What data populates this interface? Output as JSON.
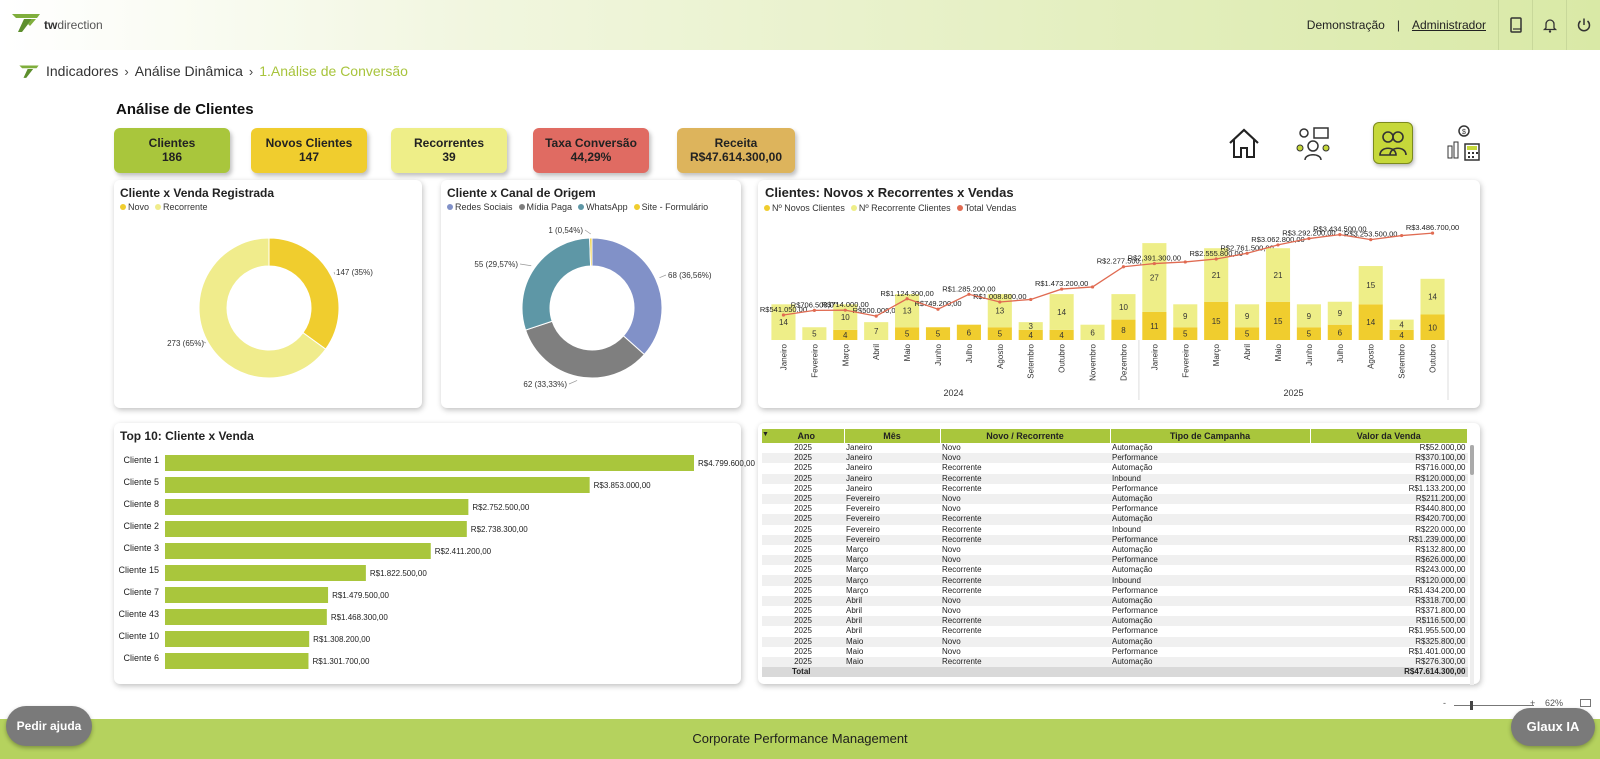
{
  "app": {
    "logo_text_bold": "tw",
    "logo_text": "direction",
    "nav_demo": "Demonstração",
    "nav_sep": "|",
    "nav_admin": "Administrador"
  },
  "breadcrumb": {
    "items": [
      "Indicadores",
      "Análise Dinâmica",
      "1.Análise de Conversão"
    ]
  },
  "page_title": "Análise de Clientes",
  "kpis": [
    {
      "label": "Clientes",
      "value": "186",
      "color": "#a9c63c"
    },
    {
      "label": "Novos Clientes",
      "value": "147",
      "color": "#f0cd2e"
    },
    {
      "label": "Recorrentes",
      "value": "39",
      "color": "#eeee88"
    },
    {
      "label": "Taxa Conversão",
      "value": "44,29%",
      "color": "#e06b62"
    },
    {
      "label": "Receita",
      "value": "R$47.614.300,00",
      "color": "#ddb45c"
    }
  ],
  "nav_icons": [
    "home-icon",
    "people-network-icon",
    "clients-icon",
    "finance-icon"
  ],
  "chart_data": [
    {
      "type": "pie",
      "title": "Cliente x Venda Registrada",
      "legend": [
        "Novo",
        "Recorrente"
      ],
      "colors": [
        "#f0cd2e",
        "#f0ec8c"
      ],
      "values": [
        147,
        273
      ],
      "labels": [
        "147 (35%)",
        "273 (65%)"
      ]
    },
    {
      "type": "pie",
      "title": "Cliente x Canal de Origem",
      "legend": [
        "Redes Sociais",
        "Mídia Paga",
        "WhatsApp",
        "Site - Formulário"
      ],
      "colors": [
        "#8191c8",
        "#7f7f7f",
        "#5e97a6",
        "#f0cd2e"
      ],
      "values": [
        68,
        62,
        55,
        1
      ],
      "labels": [
        "68 (36,56%)",
        "62 (33,33%)",
        "55 (29,57%)",
        "1 (0,54%)"
      ]
    },
    {
      "type": "bar",
      "title": "Clientes: Novos x Recorrentes x Vendas",
      "legend": [
        "Nº Novos Clientes",
        "Nº Recorrente Clientes",
        "Total Vendas"
      ],
      "colors": [
        "#f0cd2e",
        "#eeee88",
        "#e06b52"
      ],
      "categories": [
        "Janeiro",
        "Fevereiro",
        "Março",
        "Abril",
        "Maio",
        "Junho",
        "Julho",
        "Agosto",
        "Setembro",
        "Outubro",
        "Novembro",
        "Dezembro",
        "Janeiro",
        "Fevereiro",
        "Março",
        "Abril",
        "Maio",
        "Junho",
        "Julho",
        "Agosto",
        "Setembro",
        "Outubro"
      ],
      "groups": [
        {
          "label": "2024",
          "count": 12
        },
        {
          "label": "2025",
          "count": 10
        }
      ],
      "series": [
        {
          "name": "Nº Novos Clientes",
          "values": [
            null,
            null,
            4,
            null,
            5,
            5,
            6,
            5,
            4,
            4,
            null,
            8,
            11,
            5,
            15,
            5,
            15,
            5,
            6,
            14,
            4,
            10
          ]
        },
        {
          "name": "Nº Recorrente Clientes",
          "values": [
            14,
            5,
            10,
            7,
            13,
            null,
            null,
            13,
            3,
            14,
            6,
            10,
            27,
            9,
            21,
            9,
            21,
            9,
            9,
            15,
            4,
            14
          ]
        },
        {
          "name": "Total Vendas",
          "values": [
            541050,
            706500,
            714000,
            500000,
            1124300,
            749200,
            1285200,
            1008800,
            1100000,
            1473200,
            1550000,
            2277500,
            2391300,
            2450000,
            2555800,
            2761500,
            3062800,
            3292200,
            3434500,
            3253500,
            3400000,
            3486700
          ]
        }
      ],
      "value_labels": [
        "R$541.050,00",
        "R$706.500,00",
        "R$714.000,00",
        "R$500.000,00",
        "R$1.124.300,00",
        "R$749.200,00",
        "R$1.285.200,00",
        "R$1.008.800,00",
        "",
        "R$1.473.200,00",
        "",
        "R$2.277.500,00",
        "R$2.391.300,00",
        "",
        "R$2.555.800,00",
        "R$2.761.500,00",
        "R$3.062.800,00",
        "R$3.292.200,00",
        "R$3.434.500,00",
        "R$3.253.500,00",
        "",
        "R$3.486.700,00"
      ]
    },
    {
      "type": "bar",
      "title": "Top 10: Cliente x Venda",
      "categories": [
        "Cliente 1",
        "Cliente 5",
        "Cliente 8",
        "Cliente 2",
        "Cliente 3",
        "Cliente 15",
        "Cliente 7",
        "Cliente 43",
        "Cliente 10",
        "Cliente 6"
      ],
      "values": [
        4799600,
        3853000,
        2752500,
        2738300,
        2411200,
        1822500,
        1479500,
        1468300,
        1308200,
        1301700
      ],
      "labels": [
        "R$4.799.600,00",
        "R$3.853.000,00",
        "R$2.752.500,00",
        "R$2.738.300,00",
        "R$2.411.200,00",
        "R$1.822.500,00",
        "R$1.479.500,00",
        "R$1.468.300,00",
        "R$1.308.200,00",
        "R$1.301.700,00"
      ],
      "color": "#a9c63c"
    }
  ],
  "table": {
    "headers": [
      "Ano",
      "Mês",
      "Novo / Recorrente",
      "Tipo de Campanha",
      "Valor da Venda"
    ],
    "rows": [
      [
        "2025",
        "Janeiro",
        "Novo",
        "Automação",
        "R$52.000,00"
      ],
      [
        "2025",
        "Janeiro",
        "Novo",
        "Performance",
        "R$370.100,00"
      ],
      [
        "2025",
        "Janeiro",
        "Recorrente",
        "Automação",
        "R$716.000,00"
      ],
      [
        "2025",
        "Janeiro",
        "Recorrente",
        "Inbound",
        "R$120.000,00"
      ],
      [
        "2025",
        "Janeiro",
        "Recorrente",
        "Performance",
        "R$1.133.200,00"
      ],
      [
        "2025",
        "Fevereiro",
        "Novo",
        "Automação",
        "R$211.200,00"
      ],
      [
        "2025",
        "Fevereiro",
        "Novo",
        "Performance",
        "R$440.800,00"
      ],
      [
        "2025",
        "Fevereiro",
        "Recorrente",
        "Automação",
        "R$420.700,00"
      ],
      [
        "2025",
        "Fevereiro",
        "Recorrente",
        "Inbound",
        "R$220.000,00"
      ],
      [
        "2025",
        "Fevereiro",
        "Recorrente",
        "Performance",
        "R$1.239.000,00"
      ],
      [
        "2025",
        "Março",
        "Novo",
        "Automação",
        "R$132.800,00"
      ],
      [
        "2025",
        "Março",
        "Novo",
        "Performance",
        "R$626.000,00"
      ],
      [
        "2025",
        "Março",
        "Recorrente",
        "Automação",
        "R$243.000,00"
      ],
      [
        "2025",
        "Março",
        "Recorrente",
        "Inbound",
        "R$120.000,00"
      ],
      [
        "2025",
        "Março",
        "Recorrente",
        "Performance",
        "R$1.434.200,00"
      ],
      [
        "2025",
        "Abril",
        "Novo",
        "Automação",
        "R$318.700,00"
      ],
      [
        "2025",
        "Abril",
        "Novo",
        "Performance",
        "R$371.800,00"
      ],
      [
        "2025",
        "Abril",
        "Recorrente",
        "Automação",
        "R$116.500,00"
      ],
      [
        "2025",
        "Abril",
        "Recorrente",
        "Performance",
        "R$1.955.500,00"
      ],
      [
        "2025",
        "Maio",
        "Novo",
        "Automação",
        "R$325.800,00"
      ],
      [
        "2025",
        "Maio",
        "Novo",
        "Performance",
        "R$1.401.000,00"
      ],
      [
        "2025",
        "Maio",
        "Recorrente",
        "Automação",
        "R$276.300,00"
      ]
    ],
    "total_label": "Total",
    "total_value": "R$47.614.300,00"
  },
  "zoom": {
    "minus": "-",
    "plus": "+",
    "level": "62%"
  },
  "footer_text": "Corporate Performance Management",
  "help_button": "Pedir ajuda",
  "glaux_button": "Glaux IA"
}
